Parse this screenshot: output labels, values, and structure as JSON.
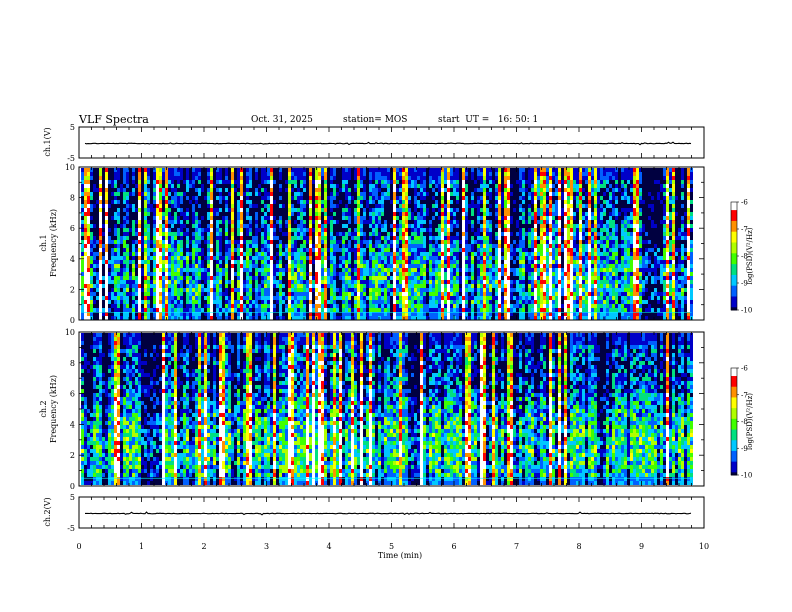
{
  "header": {
    "title": "VLF Spectra",
    "date": "Oct. 31, 2025",
    "station": "station= MOS",
    "start": "start  UT =   16: 50: 1"
  },
  "colors": {
    "colormap": [
      "#000040",
      "#0000c8",
      "#0060ff",
      "#00c8ff",
      "#00e080",
      "#40ff00",
      "#b0ff00",
      "#ffff00",
      "#ff9000",
      "#ff0000",
      "#ffffff"
    ]
  },
  "chart_data": [
    {
      "id": "ch1-voltage",
      "type": "line",
      "ylabel": "ch.1(V)",
      "ylim": [
        -5,
        5
      ],
      "yticks": [
        "5",
        "-5"
      ],
      "xlim": [
        0,
        10
      ],
      "baseline": 0
    },
    {
      "id": "ch1-spectrogram",
      "type": "heatmap",
      "ylabel": "ch.1 Frequency (kHz)",
      "ylim": [
        0,
        10
      ],
      "yticks": [
        "0",
        "2",
        "4",
        "6",
        "8",
        "10"
      ],
      "xlim": [
        0,
        10
      ],
      "data_end_min": 9.8,
      "colorbar": {
        "label": "log(PSD)(V²/Hz)",
        "range": [
          -10,
          -6
        ],
        "ticks": [
          "-6",
          "-7",
          "-8",
          "-9",
          "-10"
        ]
      },
      "noise_level": 0.45
    },
    {
      "id": "ch2-spectrogram",
      "type": "heatmap",
      "ylabel": "ch.2 Frequency (kHz)",
      "ylim": [
        0,
        10
      ],
      "yticks": [
        "0",
        "2",
        "4",
        "6",
        "8",
        "10"
      ],
      "xlim": [
        0,
        10
      ],
      "data_end_min": 9.8,
      "colorbar": {
        "label": "log(PSD)(V²/Hz)",
        "range": [
          -10,
          -6
        ],
        "ticks": [
          "-6",
          "-7",
          "-8",
          "-9",
          "-10"
        ]
      },
      "noise_level": 0.55
    },
    {
      "id": "ch2-voltage",
      "type": "line",
      "ylabel": "ch.2(V)",
      "ylim": [
        -5,
        5
      ],
      "yticks": [
        "5",
        "-5"
      ],
      "xlim": [
        0,
        10
      ],
      "baseline": 0
    }
  ],
  "xaxis": {
    "label": "Time  (min)",
    "ticks": [
      "0",
      "1",
      "2",
      "3",
      "4",
      "5",
      "6",
      "7",
      "8",
      "9",
      "10"
    ]
  },
  "labels": {
    "ch1_name": "ch.1",
    "ch2_name": "ch.2",
    "freq_label": "Frequency (kHz)",
    "cb_label": "log(PSD)(V²/Hz)"
  }
}
